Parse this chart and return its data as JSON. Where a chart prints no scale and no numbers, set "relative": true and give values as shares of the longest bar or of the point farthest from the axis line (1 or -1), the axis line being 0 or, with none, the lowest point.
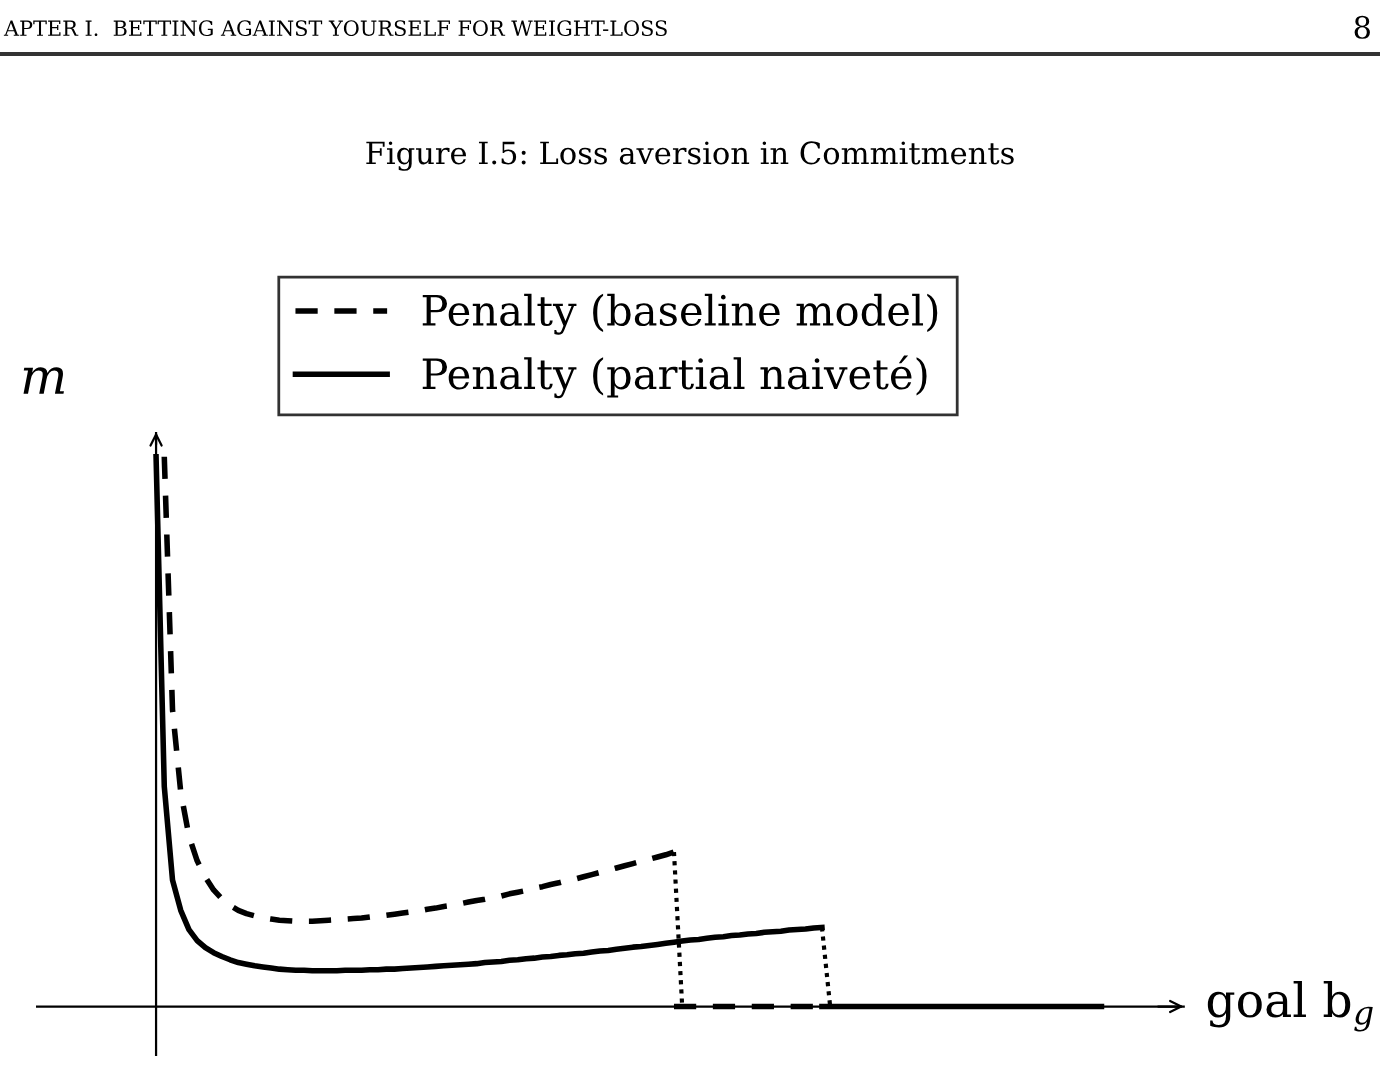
{
  "chart_data": {
    "type": "line",
    "relative": true,
    "title": "Figure I.5: Loss aversion in Commitments",
    "xlabel": "goal b$_{g}$",
    "ylabel": "m",
    "annotations": [
      "APTER I.  BETTING AGAINST YOURSELF FOR WEIGHT-LOSS",
      "8"
    ],
    "legend": "top",
    "marker": "none",
    "categories": [
      null,
      null,
      null,
      null,
      null,
      null,
      null,
      null,
      null,
      null,
      null,
      null,
      null,
      null,
      null,
      null,
      null,
      null,
      null,
      null,
      null,
      null,
      null,
      null,
      null,
      null,
      null,
      null,
      null,
      null,
      null,
      null,
      null,
      null,
      null,
      null,
      null,
      null,
      null,
      null,
      null,
      null,
      null,
      null,
      null,
      null,
      null,
      null,
      null,
      null,
      null,
      null,
      null,
      null,
      null,
      null,
      null,
      null,
      null,
      null,
      null,
      null,
      null,
      null,
      null,
      null,
      null,
      null,
      null,
      null,
      null,
      null,
      null,
      null,
      null,
      null,
      null,
      null,
      null,
      null,
      null,
      null,
      null,
      null,
      null,
      null,
      null,
      null,
      null,
      null,
      null,
      null,
      null,
      null,
      null,
      null,
      null,
      null,
      null,
      null,
      null,
      null,
      null,
      null,
      null,
      null,
      null,
      null,
      null,
      null,
      null,
      null,
      null,
      null,
      null,
      null
    ],
    "series": [
      {
        "name": "Penalty (baseline model)",
        "color": "#000000",
        "line_style": "dashed",
        "values": [
          null,
          1.0,
          0.54,
          0.39,
          0.31,
          0.265,
          0.235,
          0.212,
          0.196,
          0.184,
          0.175,
          0.169,
          0.165,
          0.161,
          0.159,
          0.157,
          0.156,
          0.155,
          0.155,
          0.155,
          0.156,
          0.157,
          0.158,
          0.159,
          0.16,
          0.161,
          0.163,
          0.165,
          0.166,
          0.168,
          0.17,
          0.172,
          0.174,
          0.177,
          0.179,
          0.182,
          0.184,
          0.187,
          0.19,
          0.193,
          0.195,
          0.198,
          0.201,
          0.205,
          0.208,
          0.211,
          0.215,
          0.218,
          0.222,
          0.225,
          0.229,
          0.232,
          0.236,
          0.24,
          0.244,
          0.248,
          0.252,
          0.256,
          0.26,
          0.264,
          0.268,
          0.272,
          0.276,
          0.281,
          null,
          null,
          null,
          null,
          null,
          null,
          null,
          null,
          null,
          null,
          null,
          null,
          null,
          null,
          null,
          null,
          null,
          null,
          null,
          null,
          null,
          null,
          null,
          null,
          null,
          null,
          null,
          null,
          null,
          null,
          null,
          null,
          null,
          null,
          null,
          null,
          null,
          null,
          null,
          null,
          null,
          null,
          null,
          null,
          null,
          null,
          null,
          null,
          null,
          null,
          null,
          null
        ]
      },
      {
        "name": "Penalty (partial naiveté)",
        "color": "#000000",
        "line_style": "solid",
        "values": [
          1.0,
          0.4,
          0.23,
          0.175,
          0.14,
          0.12,
          0.107,
          0.098,
          0.091,
          0.085,
          0.08,
          0.077,
          0.074,
          0.072,
          0.07,
          0.068,
          0.067,
          0.066,
          0.066,
          0.065,
          0.065,
          0.065,
          0.065,
          0.066,
          0.066,
          0.066,
          0.067,
          0.067,
          0.068,
          0.068,
          0.069,
          0.07,
          0.071,
          0.072,
          0.073,
          0.074,
          0.075,
          0.076,
          0.077,
          0.078,
          0.08,
          0.081,
          0.082,
          0.084,
          0.085,
          0.087,
          0.088,
          0.09,
          0.091,
          0.093,
          0.094,
          0.096,
          0.097,
          0.099,
          0.101,
          0.102,
          0.104,
          0.106,
          0.108,
          0.109,
          0.111,
          0.113,
          0.115,
          0.117,
          0.119,
          0.121,
          0.122,
          0.124,
          0.126,
          0.127,
          0.129,
          0.13,
          0.132,
          0.133,
          0.135,
          0.136,
          0.137,
          0.139,
          0.14,
          0.141,
          0.143,
          0.144,
          null,
          null,
          null,
          null,
          null,
          null,
          null,
          null,
          null,
          null,
          null,
          null,
          null,
          null,
          null,
          null,
          null,
          null,
          null,
          null,
          null,
          null,
          null,
          null,
          null,
          null,
          null,
          null,
          null,
          null,
          null,
          null,
          null,
          null
        ]
      },
      {
        "color": "#000000",
        "line_style": "dashed",
        "values": [
          null,
          null,
          null,
          null,
          null,
          null,
          null,
          null,
          null,
          null,
          null,
          null,
          null,
          null,
          null,
          null,
          null,
          null,
          null,
          null,
          null,
          null,
          null,
          null,
          null,
          null,
          null,
          null,
          null,
          null,
          null,
          null,
          null,
          null,
          null,
          null,
          null,
          null,
          null,
          null,
          null,
          null,
          null,
          null,
          null,
          null,
          null,
          null,
          null,
          null,
          null,
          null,
          null,
          null,
          null,
          null,
          null,
          null,
          null,
          null,
          null,
          null,
          null,
          0,
          0,
          0,
          0,
          0,
          0,
          0,
          0,
          0,
          0,
          0,
          0,
          0,
          0,
          0,
          0,
          0,
          0,
          0,
          null,
          null,
          null,
          null,
          null,
          null,
          null,
          null,
          null,
          null,
          null,
          null,
          null,
          null,
          null,
          null,
          null,
          null,
          null,
          null,
          null,
          null,
          null,
          null,
          null,
          null,
          null,
          null,
          null,
          null,
          null,
          null,
          null,
          null
        ]
      },
      {
        "color": "#000000",
        "line_style": "solid",
        "values": [
          null,
          null,
          null,
          null,
          null,
          null,
          null,
          null,
          null,
          null,
          null,
          null,
          null,
          null,
          null,
          null,
          null,
          null,
          null,
          null,
          null,
          null,
          null,
          null,
          null,
          null,
          null,
          null,
          null,
          null,
          null,
          null,
          null,
          null,
          null,
          null,
          null,
          null,
          null,
          null,
          null,
          null,
          null,
          null,
          null,
          null,
          null,
          null,
          null,
          null,
          null,
          null,
          null,
          null,
          null,
          null,
          null,
          null,
          null,
          null,
          null,
          null,
          null,
          null,
          null,
          null,
          null,
          null,
          null,
          null,
          null,
          null,
          null,
          null,
          null,
          null,
          null,
          null,
          null,
          null,
          null,
          0,
          0,
          0,
          0,
          0,
          0,
          0,
          0,
          0,
          0,
          0,
          0,
          0,
          0,
          0,
          0,
          0,
          0,
          0,
          0,
          0,
          0,
          0,
          0,
          0,
          0,
          0,
          0,
          0,
          0,
          0,
          0,
          0,
          0,
          0
        ]
      },
      {
        "color": "#000000",
        "line_style": "dotted",
        "values": [
          null,
          null,
          null,
          null,
          null,
          null,
          null,
          null,
          null,
          null,
          null,
          null,
          null,
          null,
          null,
          null,
          null,
          null,
          null,
          null,
          null,
          null,
          null,
          null,
          null,
          null,
          null,
          null,
          null,
          null,
          null,
          null,
          null,
          null,
          null,
          null,
          null,
          null,
          null,
          null,
          null,
          null,
          null,
          null,
          null,
          null,
          null,
          null,
          null,
          null,
          null,
          null,
          null,
          null,
          null,
          null,
          null,
          null,
          null,
          null,
          null,
          null,
          null,
          0.281,
          0,
          null,
          null,
          null,
          null,
          null,
          null,
          null,
          null,
          null,
          null,
          null,
          null,
          null,
          null,
          null,
          null,
          null,
          null,
          null,
          null,
          null,
          null,
          null,
          null,
          null,
          null,
          null,
          null,
          null,
          null,
          null,
          null,
          null,
          null,
          null,
          null,
          null,
          null,
          null,
          null,
          null,
          null,
          null,
          null,
          null,
          null,
          null,
          null,
          null,
          null,
          null
        ]
      },
      {
        "color": "#000000",
        "line_style": "dotted",
        "values": [
          null,
          null,
          null,
          null,
          null,
          null,
          null,
          null,
          null,
          null,
          null,
          null,
          null,
          null,
          null,
          null,
          null,
          null,
          null,
          null,
          null,
          null,
          null,
          null,
          null,
          null,
          null,
          null,
          null,
          null,
          null,
          null,
          null,
          null,
          null,
          null,
          null,
          null,
          null,
          null,
          null,
          null,
          null,
          null,
          null,
          null,
          null,
          null,
          null,
          null,
          null,
          null,
          null,
          null,
          null,
          null,
          null,
          null,
          null,
          null,
          null,
          null,
          null,
          null,
          null,
          null,
          null,
          null,
          null,
          null,
          null,
          null,
          null,
          null,
          null,
          null,
          null,
          null,
          null,
          null,
          null,
          0.144,
          0,
          null,
          null,
          null,
          null,
          null,
          null,
          null,
          null,
          null,
          null,
          null,
          null,
          null,
          null,
          null,
          null,
          null,
          null,
          null,
          null,
          null,
          null,
          null,
          null,
          null,
          null,
          null,
          null,
          null,
          null,
          null,
          null,
          null
        ]
      }
    ]
  }
}
